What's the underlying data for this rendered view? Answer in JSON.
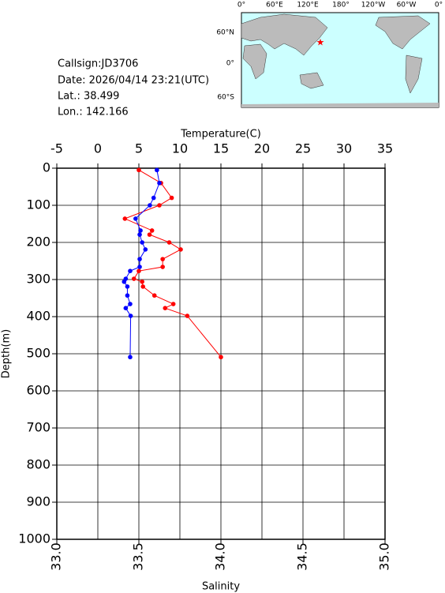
{
  "info": {
    "callsign": "Callsign:JD3706",
    "date": "Date:  2026/04/14 23:21(UTC)",
    "lat": "Lat.:   38.499",
    "lon": "Lon.:  142.166"
  },
  "map": {
    "top_labels": [
      "0°",
      "60°E",
      "120°E",
      "180°",
      "120°W",
      "60°W",
      "0°"
    ],
    "left_labels": [
      "60°N",
      "0°",
      "60°S"
    ]
  },
  "chart_data": {
    "type": "profile",
    "x_label": "Temperature(C)",
    "x2_label": "Salinity",
    "y_label": "Depth(m)",
    "xlim": [
      -5,
      35
    ],
    "xticks": [
      -5,
      0,
      5,
      10,
      15,
      20,
      25,
      30,
      35
    ],
    "x2lim": [
      33,
      35
    ],
    "x2ticks": [
      {
        "value": 33,
        "label": "33.0"
      },
      {
        "value": 33.5,
        "label": "33.5"
      },
      {
        "value": 34,
        "label": "34.0"
      },
      {
        "value": 34.5,
        "label": "34.5"
      },
      {
        "value": 35,
        "label": "35.0"
      }
    ],
    "ylim": [
      0,
      1000
    ],
    "yticks": [
      0,
      100,
      200,
      300,
      400,
      500,
      600,
      700,
      800,
      900,
      1000
    ],
    "y_reversed": true,
    "grid": true,
    "depth": [
      5,
      40,
      80,
      100,
      136,
      168,
      179,
      200,
      219,
      245,
      266,
      277,
      298,
      306,
      319,
      343,
      366,
      377,
      398,
      509
    ],
    "series": [
      {
        "color": "#ff0000",
        "axis": "x",
        "values": [
          5.0,
          7.7,
          9.0,
          7.5,
          3.3,
          6.6,
          6.3,
          8.7,
          10.1,
          7.9,
          7.9,
          5.0,
          4.4,
          5.4,
          5.5,
          6.9,
          9.2,
          8.2,
          10.9,
          15.0
        ]
      },
      {
        "color": "#0000ff",
        "axis": "x2",
        "values": [
          33.61,
          33.625,
          33.59,
          33.567,
          33.48,
          33.51,
          33.505,
          33.52,
          33.54,
          33.505,
          33.505,
          33.447,
          33.42,
          33.41,
          33.43,
          33.43,
          33.447,
          33.42,
          33.45,
          33.447
        ]
      }
    ]
  }
}
